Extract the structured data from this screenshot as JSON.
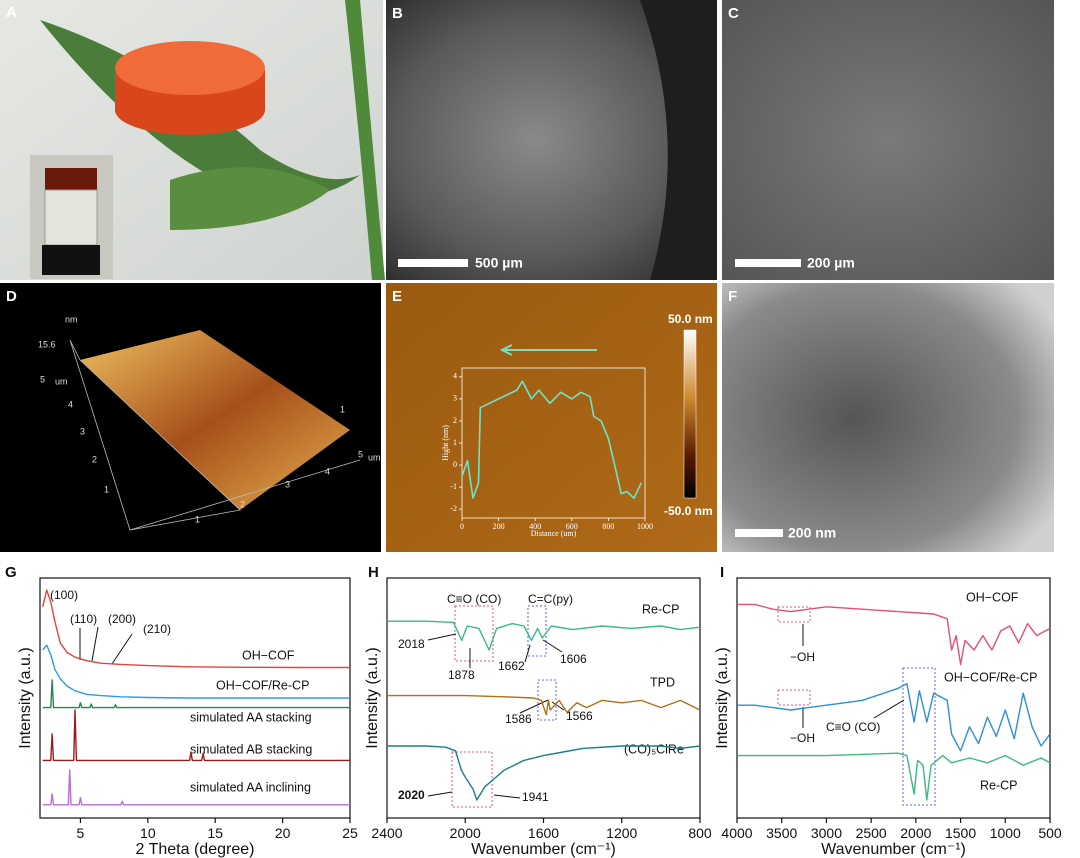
{
  "panels": {
    "A": "A",
    "B": "B",
    "C": "C",
    "D": "D",
    "E": "E",
    "F": "F",
    "G": "G",
    "H": "H",
    "I": "I"
  },
  "scale_bars": {
    "B": "500 µm",
    "C": "200 µm",
    "F": "200 nm"
  },
  "afm_3d": {
    "unit_z": "nm",
    "z_value": "15.6",
    "unit_y": "um",
    "unit_x": "um",
    "ticks_y": [
      "5",
      "4",
      "3",
      "2",
      "1"
    ],
    "ticks_x": [
      "1",
      "2",
      "3",
      "4",
      "5"
    ],
    "tick_z": "1"
  },
  "afm_2d": {
    "colorbar_max": "50.0 nm",
    "colorbar_min": "-50.0 nm"
  },
  "profile_chart": {
    "type": "line",
    "x_label": "Distance (um)",
    "y_label": "Hight (nm)",
    "xlim": [
      0,
      1000
    ],
    "ylim": [
      -2.4,
      4.4
    ],
    "xticks": [
      0,
      200,
      400,
      600,
      800,
      1000
    ],
    "yticks": [
      -2,
      -1,
      0,
      1,
      2,
      3,
      4
    ],
    "series": [
      {
        "color": "#6fe3c8",
        "x": [
          0,
          30,
          60,
          90,
          100,
          150,
          200,
          250,
          300,
          330,
          380,
          420,
          480,
          540,
          600,
          650,
          700,
          720,
          760,
          800,
          840,
          870,
          900,
          940,
          980
        ],
        "values": [
          -0.5,
          0.2,
          -1.5,
          -0.8,
          2.6,
          2.8,
          3.0,
          3.2,
          3.4,
          3.8,
          3.0,
          3.4,
          2.8,
          3.3,
          3.0,
          3.3,
          3.1,
          2.2,
          2.0,
          1.2,
          -0.2,
          -1.3,
          -1.2,
          -1.5,
          -0.8
        ]
      }
    ]
  },
  "chart_data": [
    {
      "type": "line",
      "x_label": "2 Theta (degree)",
      "y_label": "Intensity (a.u.)",
      "xlim": [
        2,
        25
      ],
      "ylim": [
        0,
        10
      ],
      "xticks": [
        5,
        10,
        15,
        20,
        25
      ],
      "annotations": [
        "(100)",
        "(110)",
        "(200)",
        "(210)"
      ],
      "series": [
        {
          "name": "OH−COF",
          "color": "#e0463c",
          "x": [
            2.2,
            2.5,
            2.8,
            3.1,
            3.5,
            4.0,
            4.6,
            5.5,
            6.5,
            8,
            10,
            13,
            17,
            21,
            25
          ],
          "values": [
            8.8,
            9.5,
            9.0,
            8.2,
            7.3,
            6.9,
            6.7,
            6.55,
            6.45,
            6.4,
            6.35,
            6.3,
            6.28,
            6.27,
            6.27
          ]
        },
        {
          "name": "OH−COF/Re-CP",
          "color": "#2b9de0",
          "x": [
            2.2,
            2.5,
            2.8,
            3.1,
            3.5,
            4.0,
            4.6,
            5.5,
            6.5,
            8,
            10,
            13,
            17,
            21,
            25
          ],
          "values": [
            7.0,
            7.2,
            6.8,
            6.2,
            5.8,
            5.5,
            5.3,
            5.15,
            5.1,
            5.05,
            5.02,
            5.0,
            5.0,
            5.0,
            5.0
          ]
        },
        {
          "name": "simulated AA stacking",
          "color": "#1d8a4e",
          "x": [
            2.2,
            2.8,
            2.9,
            3.0,
            4.9,
            5.0,
            5.1,
            5.7,
            5.8,
            5.9,
            7.5,
            7.6,
            7.7,
            25
          ],
          "values": [
            4.6,
            4.6,
            5.75,
            4.6,
            4.6,
            4.8,
            4.6,
            4.6,
            4.75,
            4.6,
            4.6,
            4.72,
            4.6,
            4.6
          ]
        },
        {
          "name": "simulated AB stacking",
          "color": "#9b1c1c",
          "x": [
            2.2,
            2.8,
            2.9,
            3.0,
            4.5,
            4.6,
            4.7,
            13.1,
            13.2,
            13.3,
            14.0,
            14.1,
            14.2,
            25
          ],
          "values": [
            2.4,
            2.4,
            3.5,
            2.4,
            2.4,
            4.5,
            2.4,
            2.4,
            2.75,
            2.4,
            2.4,
            2.7,
            2.4,
            2.4
          ]
        },
        {
          "name": "simulated AA inclining",
          "color": "#b56fd6",
          "x": [
            2.2,
            2.8,
            2.9,
            3.0,
            4.1,
            4.2,
            4.3,
            4.9,
            5.0,
            5.1,
            8.0,
            8.1,
            8.2,
            25
          ],
          "values": [
            0.55,
            0.55,
            1.0,
            0.55,
            0.55,
            2.0,
            0.55,
            0.55,
            0.85,
            0.55,
            0.55,
            0.7,
            0.55,
            0.55
          ]
        }
      ]
    },
    {
      "type": "line",
      "x_label": "Wavenumber (cm⁻¹)",
      "y_label": "Intensity (a.u.)",
      "xlim": [
        2400,
        800
      ],
      "ylim": [
        0,
        10
      ],
      "xticks": [
        2400,
        2000,
        1600,
        1200,
        800
      ],
      "annotations": [
        "C≡O (CO)",
        "C=C(py)",
        "2018",
        "1878",
        "1662",
        "1606",
        "1586",
        "1566",
        "2020",
        "1941"
      ],
      "series": [
        {
          "name": "Re-CP",
          "color": "#3cb88a",
          "x": [
            2400,
            2200,
            2060,
            2018,
            1990,
            1930,
            1878,
            1840,
            1760,
            1700,
            1662,
            1630,
            1606,
            1560,
            1450,
            1300,
            1150,
            1000,
            900,
            800
          ],
          "values": [
            8.2,
            8.2,
            8.15,
            7.4,
            8.0,
            7.9,
            7.0,
            7.9,
            8.1,
            8.0,
            7.4,
            7.9,
            7.5,
            8.0,
            7.85,
            8.0,
            7.9,
            8.0,
            7.85,
            7.95
          ]
        },
        {
          "name": "TPD",
          "color": "#b0701a",
          "x": [
            2400,
            2200,
            2000,
            1800,
            1650,
            1610,
            1586,
            1575,
            1566,
            1520,
            1480,
            1430,
            1380,
            1300,
            1200,
            1100,
            1000,
            900,
            800
          ],
          "values": [
            5.1,
            5.1,
            5.1,
            5.05,
            5.0,
            4.9,
            4.3,
            4.9,
            4.5,
            4.9,
            4.4,
            4.8,
            4.6,
            4.9,
            4.8,
            4.9,
            4.6,
            4.9,
            4.5
          ]
        },
        {
          "name": "(CO)₅ClRe",
          "color": "#1a7f86",
          "x": [
            2400,
            2200,
            2100,
            2050,
            2020,
            2000,
            1960,
            1941,
            1900,
            1800,
            1700,
            1600,
            1500,
            1400,
            1200,
            1000,
            900,
            800
          ],
          "values": [
            3.0,
            3.0,
            2.95,
            2.8,
            2.0,
            1.7,
            1.2,
            0.75,
            1.3,
            2.0,
            2.4,
            2.6,
            2.75,
            2.9,
            3.0,
            3.0,
            2.9,
            3.0
          ]
        }
      ]
    },
    {
      "type": "line",
      "x_label": "Wavenumber (cm⁻¹)",
      "y_label": "Intensity (a.u.)",
      "xlim": [
        4000,
        500
      ],
      "ylim": [
        0,
        10
      ],
      "xticks": [
        4000,
        3500,
        3000,
        2500,
        2000,
        1500,
        1000,
        500
      ],
      "annotations": [
        "−OH",
        "−OH",
        "C≡O (CO)"
      ],
      "series": [
        {
          "name": "OH−COF",
          "color": "#e0507a",
          "x": [
            4000,
            3800,
            3600,
            3400,
            3200,
            3000,
            2600,
            2200,
            1800,
            1650,
            1600,
            1550,
            1500,
            1450,
            1350,
            1250,
            1150,
            1050,
            950,
            850,
            750,
            650,
            500
          ],
          "values": [
            8.9,
            8.9,
            8.7,
            8.6,
            8.7,
            8.8,
            8.7,
            8.6,
            8.5,
            8.3,
            7.0,
            7.6,
            6.4,
            7.4,
            7.0,
            7.6,
            7.0,
            7.8,
            8.0,
            7.3,
            8.1,
            7.6,
            7.9
          ]
        },
        {
          "name": "OH−COF/Re-CP",
          "color": "#2e8fd6",
          "x": [
            4000,
            3800,
            3600,
            3400,
            3200,
            3000,
            2600,
            2200,
            2100,
            2020,
            1960,
            1878,
            1800,
            1650,
            1600,
            1500,
            1400,
            1300,
            1200,
            1100,
            1000,
            900,
            800,
            700,
            600,
            500
          ],
          "values": [
            4.7,
            4.7,
            4.6,
            4.5,
            4.6,
            4.7,
            4.9,
            5.4,
            5.6,
            4.0,
            5.3,
            4.0,
            5.2,
            4.9,
            3.5,
            2.8,
            3.8,
            3.1,
            4.2,
            3.4,
            4.5,
            3.3,
            5.2,
            3.8,
            3.0,
            3.5
          ]
        },
        {
          "name": "Re-CP",
          "color": "#3cba80",
          "x": [
            4000,
            3500,
            3000,
            2600,
            2200,
            2100,
            2020,
            1980,
            1920,
            1878,
            1830,
            1700,
            1600,
            1400,
            1200,
            1000,
            800,
            600,
            500
          ],
          "values": [
            2.6,
            2.6,
            2.6,
            2.65,
            2.7,
            2.6,
            1.0,
            2.4,
            2.2,
            0.75,
            2.2,
            2.6,
            2.3,
            2.5,
            2.3,
            2.6,
            2.2,
            2.5,
            2.3
          ]
        }
      ]
    }
  ]
}
